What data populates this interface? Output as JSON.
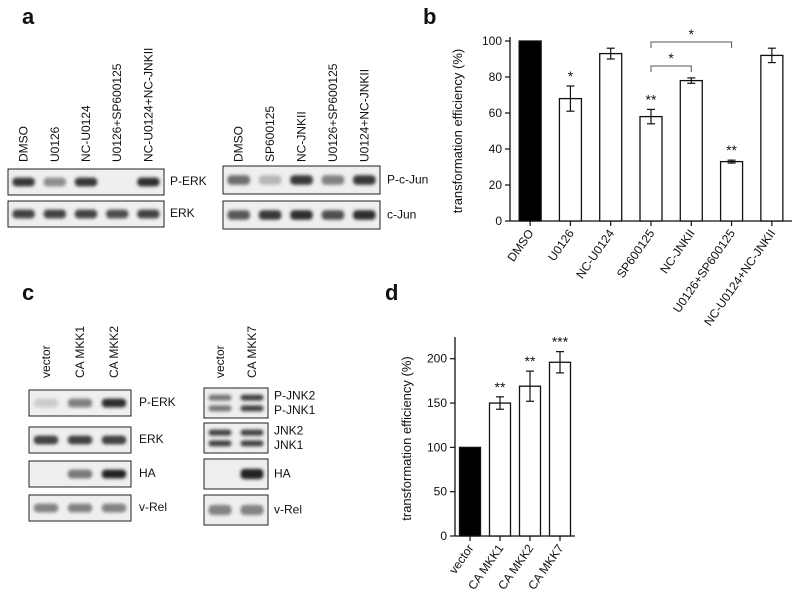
{
  "panels": {
    "a": {
      "letter": "a",
      "left_lanes": [
        "DMSO",
        "U0126",
        "NC-U0124",
        "U0126+SP600125",
        "NC-U0124+NC-JNKII"
      ],
      "right_lanes": [
        "DMSO",
        "SP600125",
        "NC-JNKII",
        "U0126+SP600125",
        "U0124+NC-JNKII"
      ],
      "left_blots": [
        {
          "label": "P-ERK",
          "intensities": [
            0.85,
            0.45,
            0.85,
            0.05,
            0.9
          ]
        },
        {
          "label": "ERK",
          "intensities": [
            0.8,
            0.8,
            0.8,
            0.75,
            0.8
          ]
        }
      ],
      "right_blots": [
        {
          "label": "P-c-Jun",
          "intensities": [
            0.6,
            0.25,
            0.85,
            0.5,
            0.85
          ]
        },
        {
          "label": "c-Jun",
          "intensities": [
            0.7,
            0.85,
            0.9,
            0.75,
            0.9
          ]
        }
      ]
    },
    "b": {
      "letter": "b"
    },
    "c": {
      "letter": "c",
      "left_lanes": [
        "vector",
        "CA MKK1",
        "CA MKK2"
      ],
      "right_lanes": [
        "vector",
        "CA MKK7"
      ],
      "left_blots": [
        {
          "labels": [
            "P-ERK"
          ],
          "intensities": [
            0.15,
            0.5,
            0.9
          ]
        },
        {
          "labels": [
            "ERK"
          ],
          "intensities": [
            0.8,
            0.8,
            0.8
          ]
        },
        {
          "labels": [
            "HA"
          ],
          "intensities": [
            0.02,
            0.55,
            0.95
          ]
        },
        {
          "labels": [
            "v-Rel"
          ],
          "intensities": [
            0.5,
            0.5,
            0.5
          ]
        }
      ],
      "right_blots": [
        {
          "labels": [
            "P-JNK2",
            "P-JNK1"
          ],
          "intensities": [
            0.55,
            0.8
          ]
        },
        {
          "labels": [
            "JNK2",
            "JNK1"
          ],
          "intensities": [
            0.8,
            0.8
          ]
        },
        {
          "labels": [
            "HA"
          ],
          "intensities": [
            0.02,
            0.95
          ]
        },
        {
          "labels": [
            "v-Rel"
          ],
          "intensities": [
            0.5,
            0.5
          ]
        }
      ]
    },
    "d": {
      "letter": "d"
    }
  },
  "chart_data": [
    {
      "panel": "b",
      "type": "bar",
      "categories": [
        "DMSO",
        "U0126",
        "NC-U0124",
        "SP600125",
        "NC-JNKII",
        "U0126+SP600125",
        "NC-U0124+NC-JNKII"
      ],
      "values": [
        100,
        68,
        93,
        58,
        78,
        33,
        92
      ],
      "errors": [
        0,
        7,
        3,
        4,
        1.5,
        0.8,
        4
      ],
      "significance": [
        "",
        "*",
        "",
        "**",
        "",
        "**",
        ""
      ],
      "bar_colors": [
        "#000000",
        "#ffffff",
        "#ffffff",
        "#ffffff",
        "#ffffff",
        "#ffffff",
        "#ffffff"
      ],
      "brackets": [
        {
          "from": "SP600125",
          "to": "NC-JNKII",
          "label": "*"
        },
        {
          "from": "SP600125",
          "to": "U0126+SP600125",
          "label": "*"
        }
      ],
      "title": "",
      "xlabel": "",
      "ylabel": "transformation efficiency (%)",
      "ylim": [
        0,
        100
      ],
      "yticks": [
        0,
        20,
        40,
        60,
        80,
        100
      ]
    },
    {
      "panel": "d",
      "type": "bar",
      "categories": [
        "vector",
        "CA MKK1",
        "CA MKK2",
        "CA MKK7"
      ],
      "values": [
        100,
        150,
        169,
        196
      ],
      "errors": [
        0,
        7,
        17,
        12
      ],
      "significance": [
        "",
        "**",
        "**",
        "***"
      ],
      "bar_colors": [
        "#000000",
        "#ffffff",
        "#ffffff",
        "#ffffff"
      ],
      "title": "",
      "xlabel": "",
      "ylabel": "transformation efficiency (%)",
      "ylim": [
        0,
        220
      ],
      "yticks": [
        0,
        50,
        100,
        150,
        200
      ]
    }
  ]
}
